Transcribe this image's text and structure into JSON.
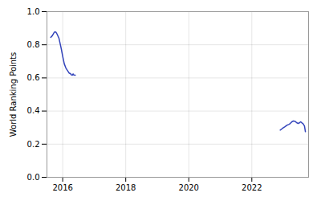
{
  "chart_data": {
    "type": "line",
    "ylabel": "World Ranking Points",
    "xlim": [
      2015.5,
      2023.8
    ],
    "xticks": [
      2016,
      2018,
      2020,
      2022
    ],
    "ylim": [
      0,
      1
    ],
    "yticks": [
      {
        "value": 0,
        "label": "0.0"
      },
      0.2,
      0.4,
      0.6,
      0.8,
      {
        "value": 1,
        "label": "1.0"
      }
    ],
    "grid": true,
    "series": [
      {
        "color": "#3344bb",
        "x": [
          2015.62,
          2015.67,
          2015.7,
          2015.73,
          2015.76,
          2015.79,
          2015.82,
          2015.88,
          2015.95,
          2016.0,
          2016.05,
          2016.1,
          2016.15,
          2016.2,
          2016.25,
          2016.28,
          2016.31,
          2016.33,
          2016.35,
          2016.37,
          2016.4
        ],
        "values": [
          0.845,
          0.855,
          0.865,
          0.875,
          0.878,
          0.875,
          0.865,
          0.84,
          0.78,
          0.73,
          0.685,
          0.66,
          0.645,
          0.63,
          0.625,
          0.618,
          0.617,
          0.624,
          0.618,
          0.617,
          0.617
        ]
      },
      {
        "color": "#3344bb",
        "x": [
          2022.9,
          2022.97,
          2023.05,
          2023.12,
          2023.18,
          2023.22,
          2023.27,
          2023.32,
          2023.37,
          2023.42,
          2023.47,
          2023.52,
          2023.55,
          2023.58,
          2023.62,
          2023.67,
          2023.7
        ],
        "values": [
          0.285,
          0.295,
          0.305,
          0.315,
          0.32,
          0.325,
          0.335,
          0.34,
          0.338,
          0.33,
          0.325,
          0.33,
          0.335,
          0.33,
          0.325,
          0.31,
          0.275
        ]
      }
    ]
  }
}
